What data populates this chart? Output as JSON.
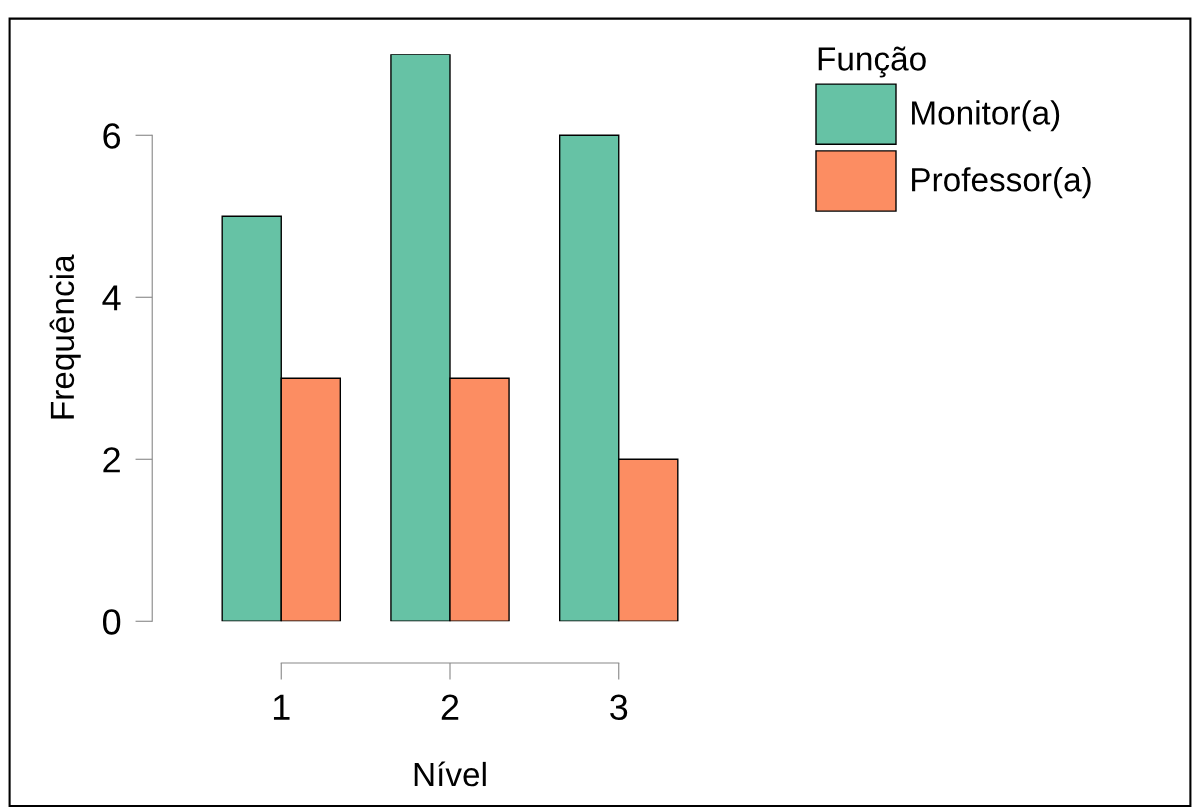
{
  "chart_data": {
    "type": "bar",
    "xlabel": "Nível",
    "ylabel": "Frequência",
    "legend_title": "Função",
    "categories": [
      "1",
      "2",
      "3"
    ],
    "series": [
      {
        "name": "Monitor(a)",
        "color": "#66c2a5",
        "values": [
          5,
          7,
          6
        ]
      },
      {
        "name": "Professor(a)",
        "color": "#fc8d62",
        "values": [
          3,
          3,
          2
        ]
      }
    ],
    "ylim": [
      0,
      7
    ],
    "yticks": [
      0,
      2,
      4,
      6
    ],
    "grid": false,
    "legend": "top right"
  }
}
